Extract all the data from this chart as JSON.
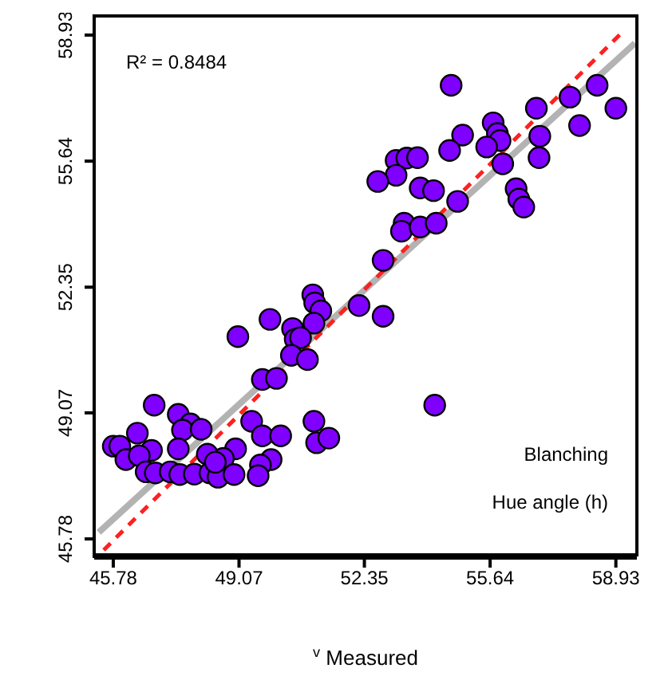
{
  "chart_data": {
    "type": "scatter",
    "xlabel": "$^{v}$ Measured",
    "annotations": [
      "R² = 0.8484",
      "Blanching",
      "Hue angle (h)"
    ],
    "xlim": [
      45.28,
      59.48
    ],
    "ylim": [
      45.28,
      59.43
    ],
    "xticks": [
      45.78,
      49.07,
      52.35,
      55.64,
      58.93
    ],
    "yticks": [
      45.78,
      49.07,
      52.35,
      55.64,
      58.93
    ],
    "marker": "circle",
    "series": [
      {
        "color": "#7f00ff",
        "x": [
          54.62,
          58.44,
          57.73,
          56.85,
          58.93,
          57.98,
          55.72,
          55.83,
          55.9,
          54.92,
          56.94,
          54.58,
          55.55,
          56.92,
          55.97,
          53.18,
          53.46,
          53.74,
          53.18,
          52.7,
          53.81,
          54.16,
          54.79,
          56.32,
          56.39,
          56.52,
          53.39,
          53.32,
          53.81,
          54.23,
          52.84,
          51.0,
          51.05,
          51.21,
          51.03,
          52.21,
          52.84,
          49.88,
          49.04,
          50.47,
          50.54,
          50.68,
          50.44,
          50.86,
          49.68,
          50.05,
          54.19,
          46.85,
          51.03,
          49.4,
          47.48,
          47.8,
          47.59,
          48.08,
          46.41,
          49.68,
          50.16,
          51.1,
          51.42,
          45.78,
          45.95,
          46.78,
          47.48,
          48.24,
          48.98,
          46.11,
          46.46,
          48.66,
          49.91,
          49.63,
          46.64,
          46.88,
          47.27,
          47.52,
          47.9,
          48.31,
          48.52,
          48.94,
          49.57,
          48.45
        ],
        "values": [
          57.62,
          57.62,
          57.31,
          57.02,
          57.02,
          56.57,
          56.64,
          56.36,
          56.18,
          56.32,
          56.29,
          55.92,
          56.01,
          55.73,
          55.57,
          55.66,
          55.72,
          55.73,
          55.27,
          55.11,
          54.94,
          54.87,
          54.59,
          54.92,
          54.65,
          54.44,
          54.02,
          53.81,
          53.92,
          54.02,
          53.05,
          52.15,
          51.94,
          51.73,
          51.41,
          51.87,
          51.59,
          51.51,
          51.06,
          51.27,
          50.99,
          51.03,
          50.57,
          50.46,
          49.94,
          49.97,
          49.27,
          49.27,
          48.85,
          48.85,
          49.03,
          48.78,
          48.62,
          48.64,
          48.54,
          48.47,
          48.47,
          48.29,
          48.41,
          48.2,
          48.2,
          48.09,
          48.13,
          47.99,
          48.13,
          47.85,
          47.95,
          47.88,
          47.85,
          47.71,
          47.53,
          47.5,
          47.53,
          47.46,
          47.47,
          47.5,
          47.39,
          47.46,
          47.43,
          47.78
        ]
      },
      {
        "type": "line",
        "color": "#b3b3b3",
        "marker": "none",
        "line_style": "solid",
        "x": [
          45.4,
          59.43
        ],
        "values": [
          45.95,
          58.72
        ]
      },
      {
        "type": "line",
        "color": "#ff2020",
        "marker": "none",
        "line_style": "dashed",
        "x": [
          45.53,
          59.14
        ],
        "values": [
          45.49,
          59.05
        ]
      }
    ]
  }
}
